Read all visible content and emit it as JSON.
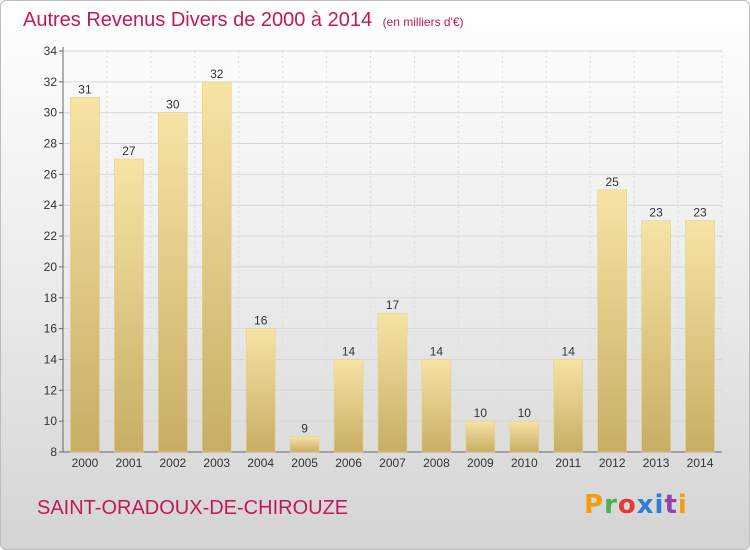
{
  "chart_data": {
    "type": "bar",
    "title": "Autres Revenus Divers de 2000 à 2014",
    "unit": "(en milliers d'€)",
    "categories": [
      "2000",
      "2001",
      "2002",
      "2003",
      "2004",
      "2005",
      "2006",
      "2007",
      "2008",
      "2009",
      "2010",
      "2011",
      "2012",
      "2013",
      "2014"
    ],
    "values": [
      31,
      27,
      30,
      32,
      16,
      9,
      14,
      17,
      14,
      10,
      10,
      14,
      25,
      23,
      23
    ],
    "ylim": [
      8,
      34
    ],
    "yticks": [
      8,
      10,
      12,
      14,
      16,
      18,
      20,
      22,
      24,
      26,
      28,
      30,
      32,
      34
    ],
    "grid": true,
    "bar_color_top": "#f7e3a5",
    "bar_color_bottom": "#c8ae64",
    "title_color": "#c2185b"
  },
  "commune": "SAINT-ORADOUX-DE-CHIROUZE",
  "logo": {
    "text": "Proxiti",
    "letters": [
      "P",
      "r",
      "o",
      "x",
      "i",
      "t",
      "i"
    ]
  }
}
